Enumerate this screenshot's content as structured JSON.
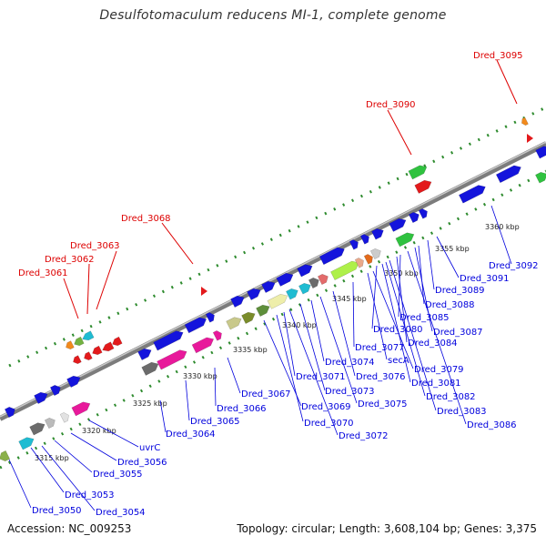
{
  "title": "Desulfotomaculum reducens MI-1, complete genome",
  "footer": {
    "accession": "Accession: NC_009253",
    "topology": "Topology: circular; Length: 3,608,104 bp; Genes: 3,375"
  },
  "colors": {
    "backbone": "#8c8c8c",
    "forward_genes": "#1414dc",
    "reverse_labels": "#0000dd",
    "red_labels": "#dd0000",
    "rna_features": "#e31a1c",
    "dots": "#2e8b2e"
  },
  "ticks": [
    "3315 kbp",
    "3320 kbp",
    "3325 kbp",
    "3330 kbp",
    "3335 kbp",
    "3340 kbp",
    "3345 kbp",
    "3350 kbp",
    "3355 kbp",
    "3360 kbp"
  ],
  "labels_red": [
    "Dred_3061",
    "Dred_3062",
    "Dred_3063",
    "Dred_3068",
    "Dred_3090",
    "Dred_3095"
  ],
  "labels_blue": [
    "Dred_3050",
    "Dred_3053",
    "Dred_3054",
    "Dred_3055",
    "Dred_3056",
    "uvrC",
    "Dred_3064",
    "Dred_3065",
    "Dred_3066",
    "Dred_3067",
    "Dred_3069",
    "Dred_3070",
    "Dred_3071",
    "Dred_3072",
    "Dred_3073",
    "Dred_3074",
    "Dred_3075",
    "Dred_3076",
    "Dred_3077",
    "secA",
    "Dred_3079",
    "Dred_3080",
    "Dred_3081",
    "Dred_3082",
    "Dred_3083",
    "Dred_3084",
    "Dred_3085",
    "Dred_3086",
    "Dred_3087",
    "Dred_3088",
    "Dred_3089",
    "Dred_3091",
    "Dred_3092"
  ]
}
